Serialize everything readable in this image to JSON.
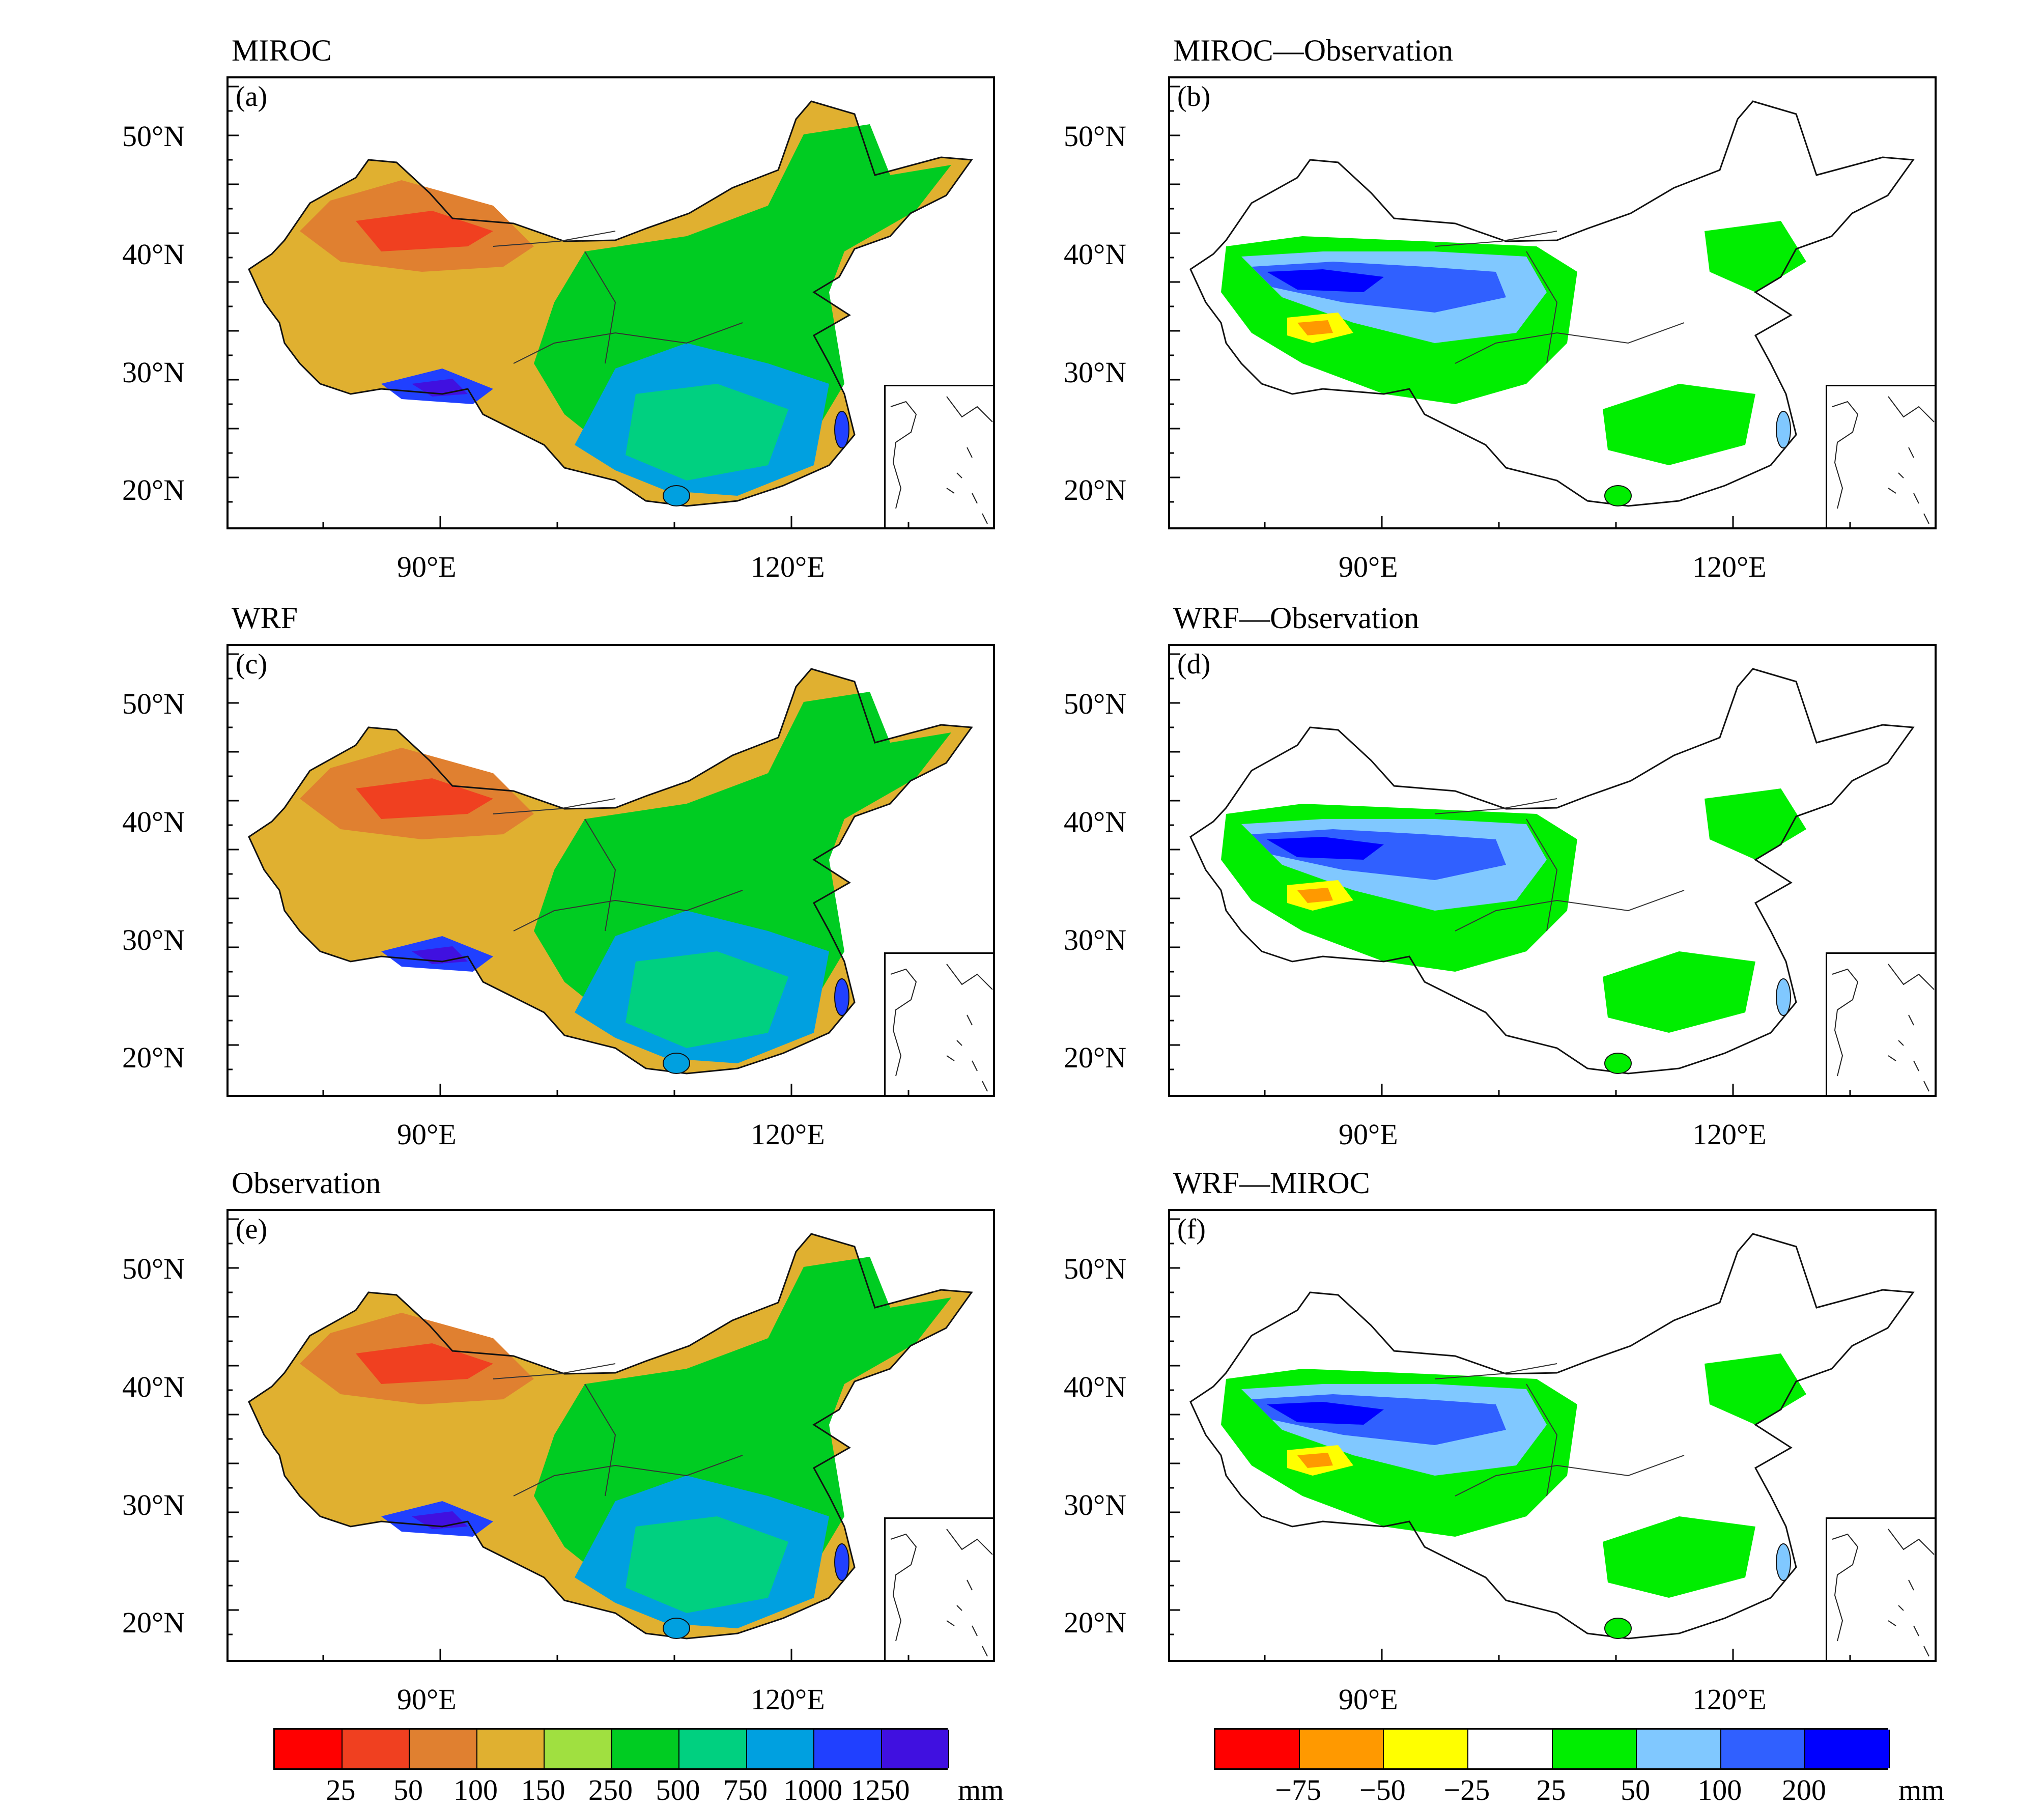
{
  "panels": [
    {
      "id": "a",
      "title": "MIROC",
      "label": "(a)",
      "kind": "total"
    },
    {
      "id": "b",
      "title": "MIROC—Observation",
      "label": "(b)",
      "kind": "diff"
    },
    {
      "id": "c",
      "title": "WRF",
      "label": "(c)",
      "kind": "total"
    },
    {
      "id": "d",
      "title": "WRF—Observation",
      "label": "(d)",
      "kind": "diff"
    },
    {
      "id": "e",
      "title": "Observation",
      "label": "(e)",
      "kind": "total"
    },
    {
      "id": "f",
      "title": "WRF—MIROC",
      "label": "(f)",
      "kind": "diff"
    }
  ],
  "lat_labels": [
    "50°N",
    "40°N",
    "30°N",
    "20°N"
  ],
  "lon_labels": [
    "90°E",
    "120°E"
  ],
  "colorbar_total": {
    "colors": [
      "#ff0000",
      "#f04020",
      "#e08030",
      "#e0b030",
      "#a0e040",
      "#00cc22",
      "#00d080",
      "#00a0e0",
      "#2040ff",
      "#4010e0"
    ],
    "labels": [
      "25",
      "50",
      "100",
      "150",
      "250",
      "500",
      "750",
      "1000",
      "1250"
    ],
    "unit": "mm"
  },
  "colorbar_diff": {
    "colors": [
      "#ff0000",
      "#ff9900",
      "#ffff00",
      "#ffffff",
      "#00ee00",
      "#80c8ff",
      "#3060ff",
      "#0000ff"
    ],
    "labels": [
      "−75",
      "−50",
      "−25",
      "25",
      "50",
      "100",
      "200"
    ],
    "unit": "mm"
  }
}
